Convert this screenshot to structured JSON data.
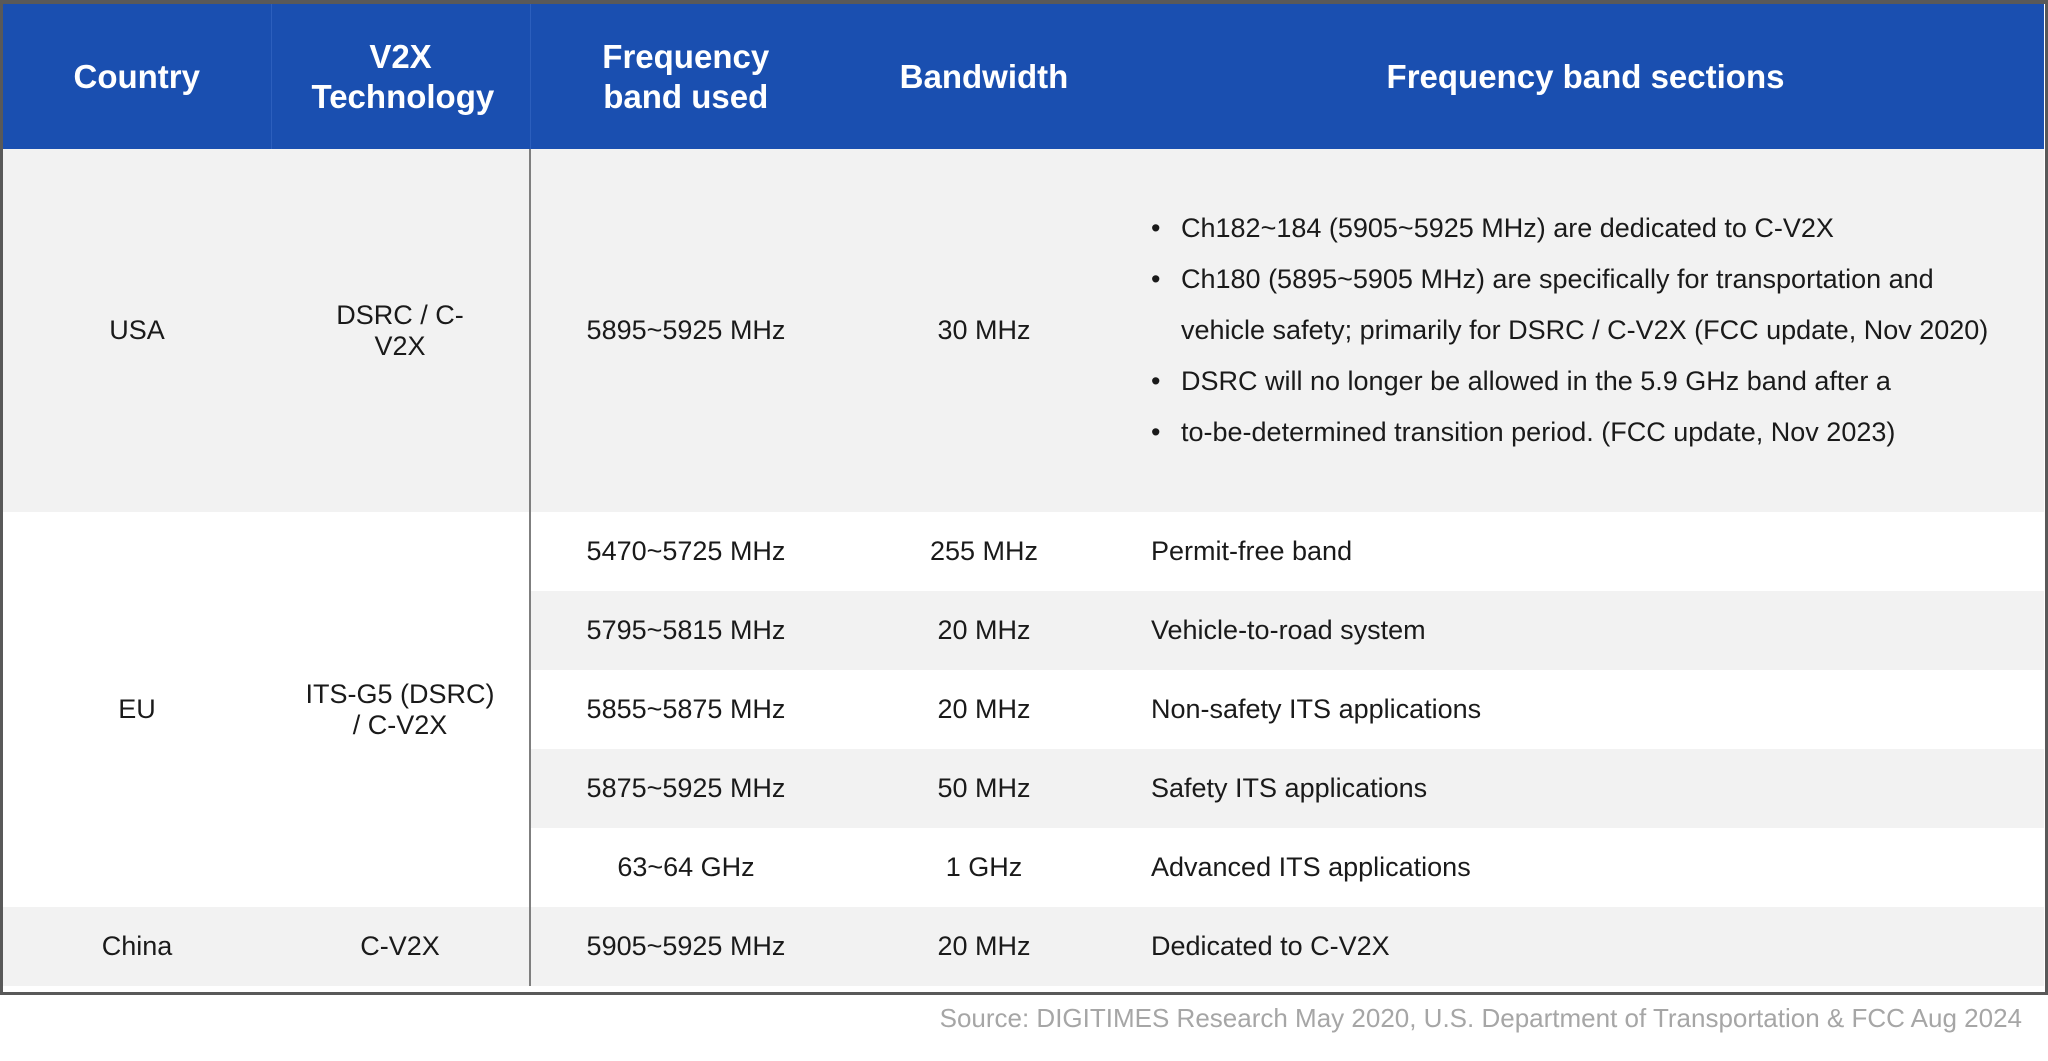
{
  "headers": [
    "Country",
    "V2X Technology",
    "Frequency band used",
    "Bandwidth",
    "Frequency band sections"
  ],
  "usa": {
    "country": "USA",
    "technology": "DSRC / C-V2X",
    "band": "5895~5925 MHz",
    "bandwidth": "30 MHz",
    "sections": [
      "Ch182~184 (5905~5925 MHz) are dedicated to C-V2X",
      "Ch180 (5895~5905 MHz) are specifically for transportation and vehicle safety; primarily for DSRC / C-V2X (FCC update, Nov 2020)",
      "DSRC will no longer be allowed in the 5.9 GHz band after a",
      "to-be-determined transition period. (FCC update, Nov 2023)"
    ]
  },
  "eu": {
    "country": "EU",
    "technology": "ITS-G5 (DSRC) / C-V2X",
    "rows": [
      {
        "band": "5470~5725 MHz",
        "bandwidth": "255 MHz",
        "section": "Permit-free band"
      },
      {
        "band": "5795~5815 MHz",
        "bandwidth": "20 MHz",
        "section": "Vehicle-to-road system"
      },
      {
        "band": "5855~5875 MHz",
        "bandwidth": "20 MHz",
        "section": "Non-safety ITS applications"
      },
      {
        "band": "5875~5925 MHz",
        "bandwidth": "50 MHz",
        "section": "Safety ITS applications"
      },
      {
        "band": "63~64 GHz",
        "bandwidth": "1 GHz",
        "section": "Advanced ITS applications"
      }
    ]
  },
  "china": {
    "country": "China",
    "technology": "C-V2X",
    "band": "5905~5925 MHz",
    "bandwidth": "20 MHz",
    "section": "Dedicated to C-V2X"
  },
  "source": "Source: DIGITIMES Research May 2020, U.S. Department of Transportation & FCC Aug 2024",
  "colors": {
    "header": "#1a4fb0",
    "row_alt": "#f2f2f2",
    "source_text": "#a6a6a6"
  }
}
